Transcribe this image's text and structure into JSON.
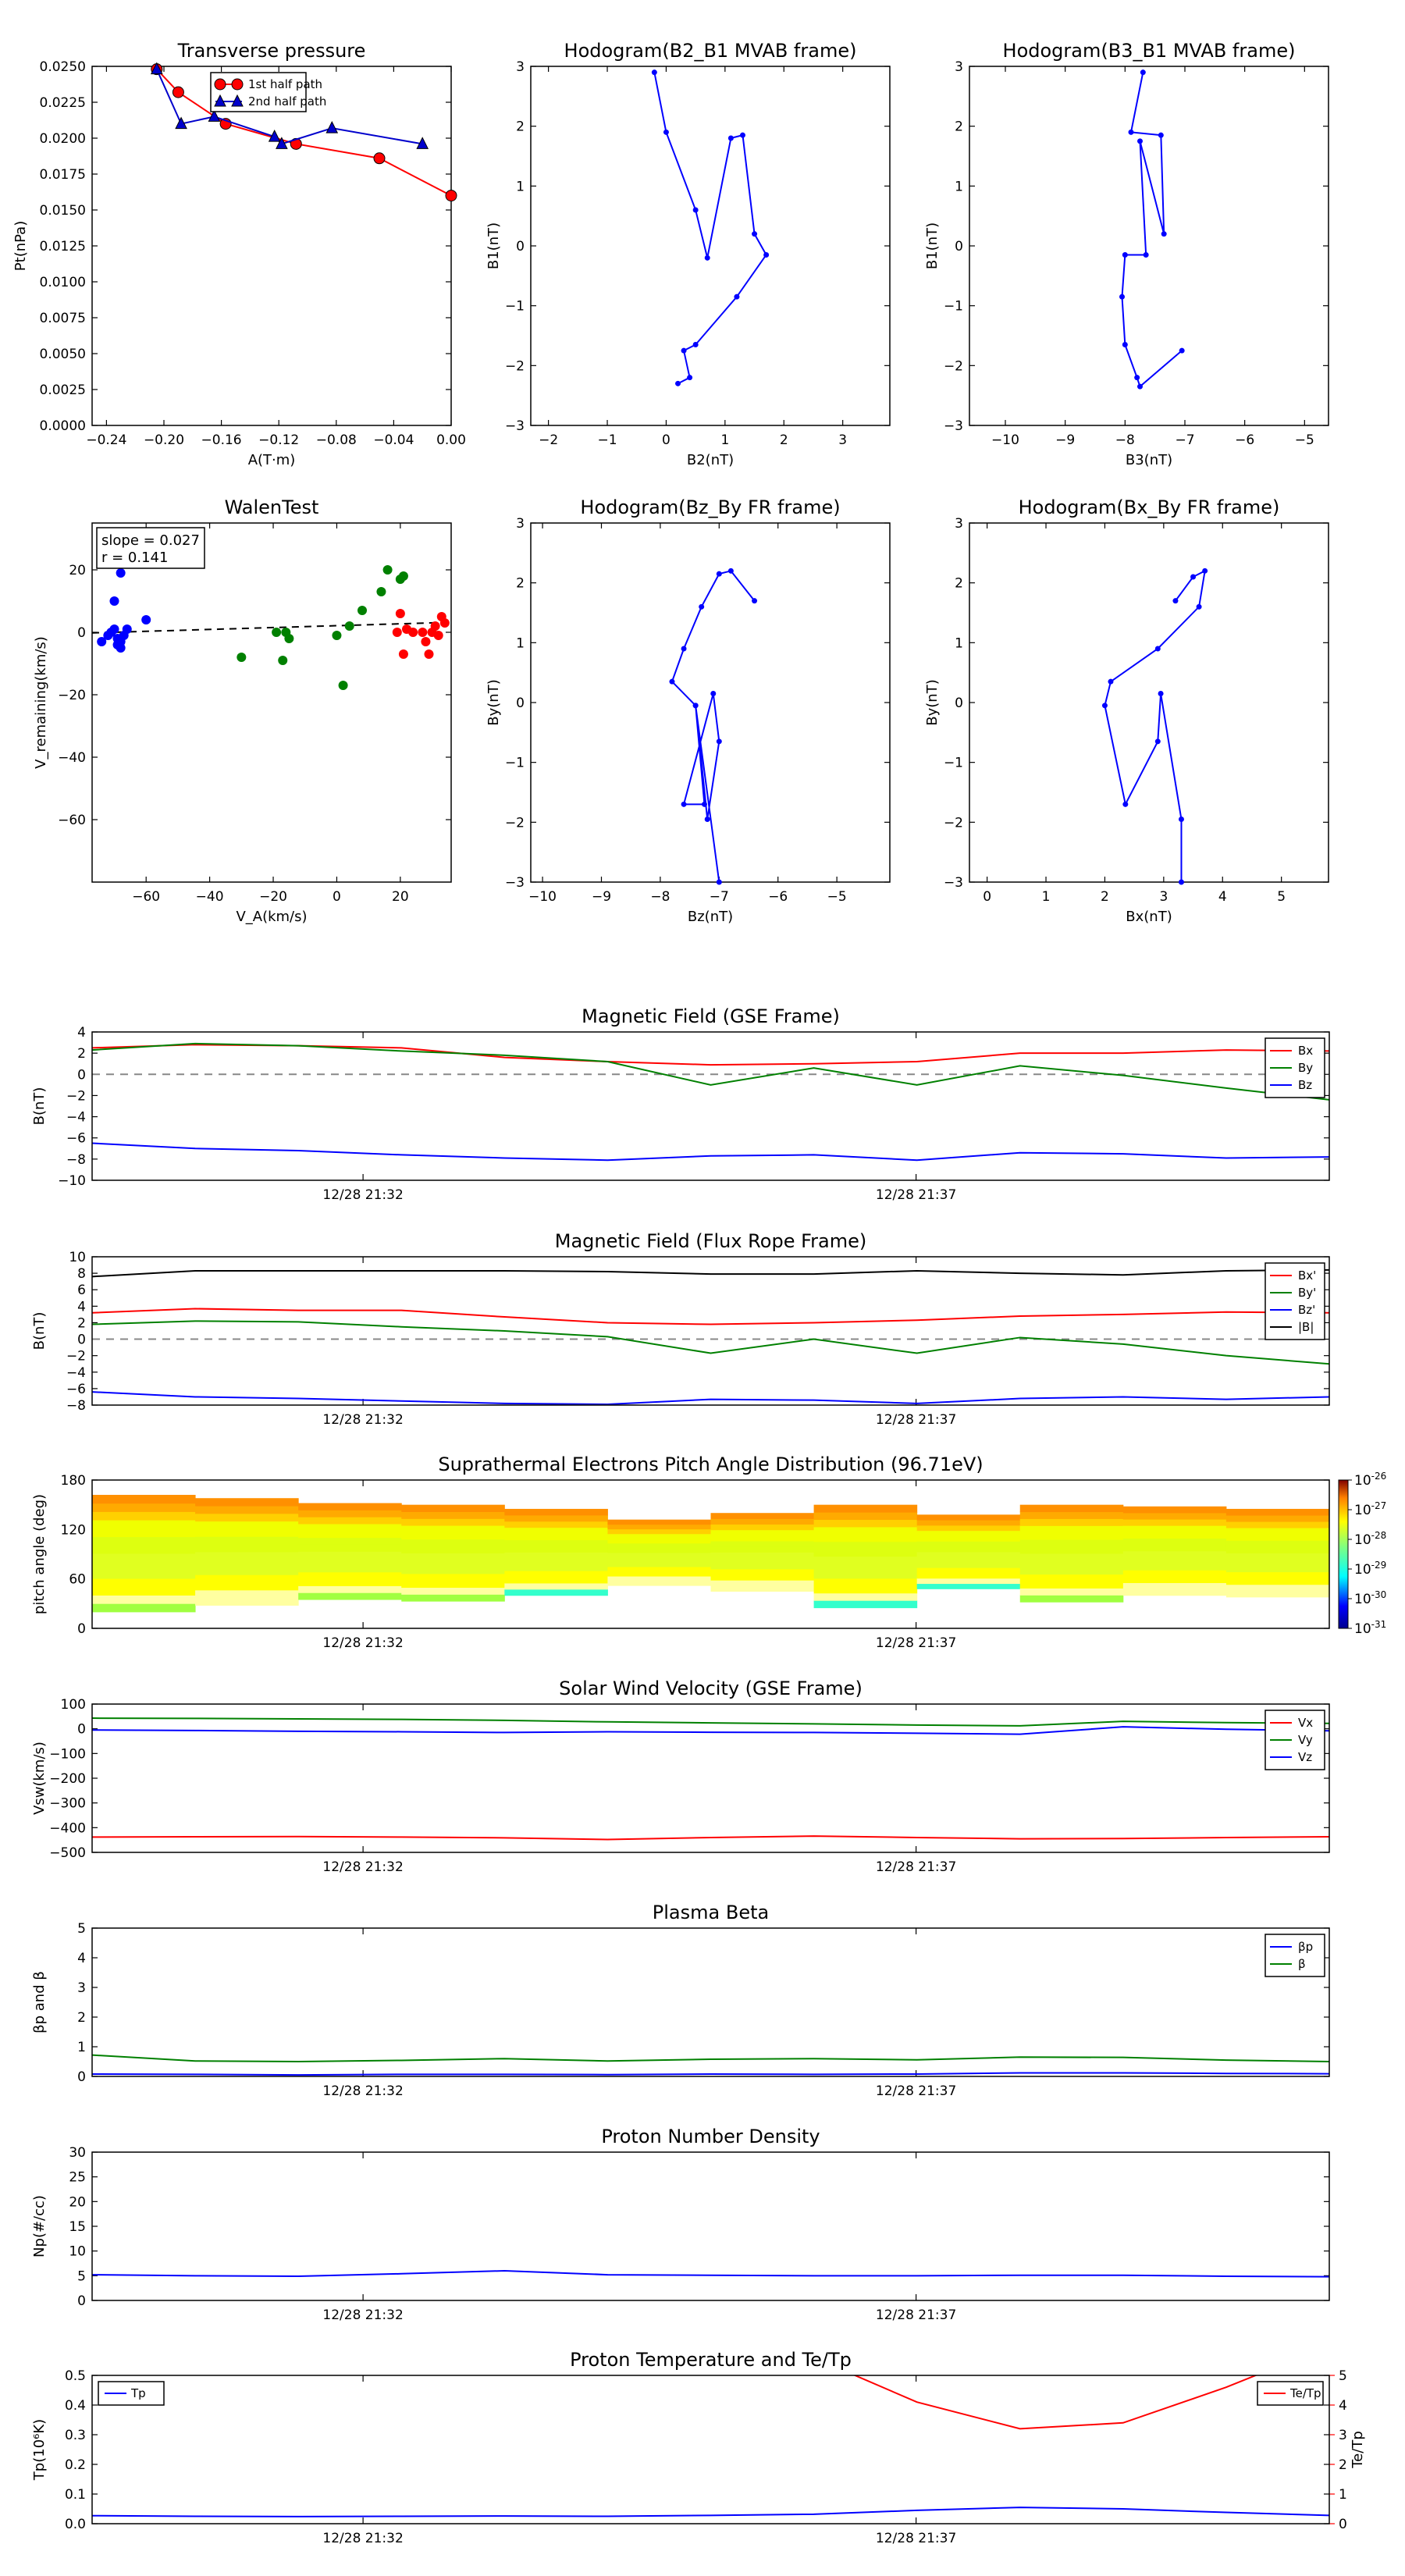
{
  "chart_data": [
    {
      "id": "pt",
      "type": "line",
      "title": "Transverse pressure",
      "xlabel": "A(T·m)",
      "ylabel": "Pt(nPa)",
      "xlim": [
        -0.25,
        0.0
      ],
      "ylim": [
        0.0,
        0.025
      ],
      "xticks": [
        -0.24,
        -0.2,
        -0.16,
        -0.12,
        -0.08,
        -0.04,
        0.0
      ],
      "xtick_labels": [
        "−0.24",
        "−0.20",
        "−0.16",
        "−0.12",
        "−0.08",
        "−0.04",
        "0.00"
      ],
      "yticks": [
        0,
        0.0025,
        0.005,
        0.0075,
        0.01,
        0.0125,
        0.015,
        0.0175,
        0.02,
        0.0225,
        0.025
      ],
      "ytick_labels": [
        "0.0000",
        "0.0025",
        "0.0050",
        "0.0075",
        "0.0100",
        "0.0125",
        "0.0150",
        "0.0175",
        "0.0200",
        "0.0225",
        "0.0250"
      ],
      "legend": "top-center",
      "series": [
        {
          "name": "1st half path",
          "color": "#ff0000",
          "marker": "circle",
          "x": [
            -0.205,
            -0.19,
            -0.157,
            -0.108,
            -0.05,
            0.0
          ],
          "y": [
            0.0248,
            0.0232,
            0.021,
            0.0196,
            0.0186,
            0.016
          ]
        },
        {
          "name": "2nd half path",
          "color": "#0000cc",
          "marker": "triangle",
          "x": [
            -0.205,
            -0.188,
            -0.165,
            -0.123,
            -0.118,
            -0.083,
            -0.02
          ],
          "y": [
            0.0248,
            0.021,
            0.0215,
            0.0201,
            0.0196,
            0.0207,
            0.0196
          ]
        }
      ]
    },
    {
      "id": "h21",
      "type": "line",
      "title": "Hodogram(B2_B1 MVAB frame)",
      "xlabel": "B2(nT)",
      "ylabel": "B1(nT)",
      "xlim": [
        -2.3,
        3.8
      ],
      "ylim": [
        -3,
        3
      ],
      "xticks": [
        -2,
        -1,
        0,
        1,
        2,
        3
      ],
      "xtick_labels": [
        "−2",
        "−1",
        "0",
        "1",
        "2",
        "3"
      ],
      "yticks": [
        -3,
        -2,
        -1,
        0,
        1,
        2,
        3
      ],
      "ytick_labels": [
        "−3",
        "−2",
        "−1",
        "0",
        "1",
        "2",
        "3"
      ],
      "series": [
        {
          "color": "#0000ff",
          "marker": "dot",
          "x": [
            -0.2,
            0.0,
            0.5,
            0.7,
            1.1,
            1.3,
            1.5,
            1.7,
            1.2,
            0.5,
            0.3,
            0.4,
            0.2
          ],
          "y": [
            2.9,
            1.9,
            0.6,
            -0.2,
            1.8,
            1.85,
            0.2,
            -0.15,
            -0.85,
            -1.65,
            -1.75,
            -2.2,
            -2.3
          ]
        }
      ]
    },
    {
      "id": "h31",
      "type": "line",
      "title": "Hodogram(B3_B1 MVAB frame)",
      "xlabel": "B3(nT)",
      "ylabel": "B1(nT)",
      "xlim": [
        -10.6,
        -4.6
      ],
      "ylim": [
        -3,
        3
      ],
      "xticks": [
        -10,
        -9,
        -8,
        -7,
        -6,
        -5
      ],
      "xtick_labels": [
        "−10",
        "−9",
        "−8",
        "−7",
        "−6",
        "−5"
      ],
      "yticks": [
        -3,
        -2,
        -1,
        0,
        1,
        2,
        3
      ],
      "ytick_labels": [
        "−3",
        "−2",
        "−1",
        "0",
        "1",
        "2",
        "3"
      ],
      "series": [
        {
          "color": "#0000ff",
          "marker": "dot",
          "x": [
            -7.7,
            -7.9,
            -7.4,
            -7.35,
            -7.75,
            -7.65,
            -8.0,
            -8.05,
            -8.0,
            -7.8,
            -7.75,
            -7.05
          ],
          "y": [
            2.9,
            1.9,
            1.85,
            0.2,
            1.75,
            -0.15,
            -0.15,
            -0.85,
            -1.65,
            -2.2,
            -2.35,
            -1.75
          ]
        }
      ]
    },
    {
      "id": "walen",
      "type": "scatter",
      "title": "WalenTest",
      "xlabel": "V_A(km/s)",
      "ylabel": "V_remaining(km/s)",
      "annotation": [
        "slope = 0.027",
        "r = 0.141"
      ],
      "xlim": [
        -77,
        36
      ],
      "ylim": [
        -80,
        35
      ],
      "xticks": [
        -60,
        -40,
        -20,
        0,
        20
      ],
      "xtick_labels": [
        "−60",
        "−40",
        "−20",
        "0",
        "20"
      ],
      "yticks": [
        -60,
        -40,
        -20,
        0,
        20
      ],
      "ytick_labels": [
        "−60",
        "−40",
        "−20",
        "0",
        "20"
      ],
      "fit": {
        "x": [
          -77,
          36
        ],
        "y": [
          -0.2,
          3.2
        ]
      },
      "groups": [
        {
          "color": "#0000ff",
          "x": [
            -74,
            -72,
            -71,
            -70,
            -69,
            -69,
            -68,
            -68,
            -67,
            -66,
            -60,
            -70,
            -68
          ],
          "y": [
            -3,
            -1,
            0,
            1,
            -2,
            -4,
            -5,
            -3,
            -1,
            1,
            4,
            10,
            19
          ]
        },
        {
          "color": "#008000",
          "x": [
            -30,
            -19,
            -17,
            -16,
            -15,
            0,
            2,
            4,
            8,
            14,
            16,
            20,
            21
          ],
          "y": [
            -8,
            0,
            -9,
            0,
            -2,
            -1,
            -17,
            2,
            7,
            13,
            20,
            17,
            18
          ]
        },
        {
          "color": "#ff0000",
          "x": [
            19,
            20,
            21,
            22,
            24,
            28,
            29,
            30,
            31,
            32,
            33,
            34,
            27
          ],
          "y": [
            0,
            6,
            -7,
            1,
            0,
            -3,
            -7,
            0,
            2,
            -1,
            5,
            3,
            0
          ]
        }
      ]
    },
    {
      "id": "hzy",
      "type": "line",
      "title": "Hodogram(Bz_By FR frame)",
      "xlabel": "Bz(nT)",
      "ylabel": "By(nT)",
      "xlim": [
        -10.2,
        -4.1
      ],
      "ylim": [
        -3,
        3
      ],
      "xticks": [
        -10,
        -9,
        -8,
        -7,
        -6,
        -5
      ],
      "xtick_labels": [
        "−10",
        "−9",
        "−8",
        "−7",
        "−6",
        "−5"
      ],
      "yticks": [
        -3,
        -2,
        -1,
        0,
        1,
        2,
        3
      ],
      "ytick_labels": [
        "−3",
        "−2",
        "−1",
        "0",
        "1",
        "2",
        "3"
      ],
      "series": [
        {
          "color": "#0000ff",
          "marker": "dot",
          "x": [
            -6.4,
            -6.8,
            -7.0,
            -7.3,
            -7.6,
            -7.8,
            -7.4,
            -7.25,
            -7.6,
            -7.1,
            -7.0,
            -7.2,
            -7.4,
            -7.0
          ],
          "y": [
            1.7,
            2.2,
            2.15,
            1.6,
            0.9,
            0.35,
            -0.05,
            -1.7,
            -1.7,
            0.15,
            -0.65,
            -1.95,
            -0.05,
            -3.0
          ]
        }
      ]
    },
    {
      "id": "hxy",
      "type": "line",
      "title": "Hodogram(Bx_By FR frame)",
      "xlabel": "Bx(nT)",
      "ylabel": "By(nT)",
      "xlim": [
        -0.3,
        5.8
      ],
      "ylim": [
        -3,
        3
      ],
      "xticks": [
        0,
        1,
        2,
        3,
        4,
        5
      ],
      "xtick_labels": [
        "0",
        "1",
        "2",
        "3",
        "4",
        "5"
      ],
      "yticks": [
        -3,
        -2,
        -1,
        0,
        1,
        2,
        3
      ],
      "ytick_labels": [
        "−3",
        "−2",
        "−1",
        "0",
        "1",
        "2",
        "3"
      ],
      "series": [
        {
          "color": "#0000ff",
          "marker": "dot",
          "x": [
            3.2,
            3.5,
            3.7,
            3.6,
            2.9,
            2.1,
            2.0,
            2.35,
            2.9,
            2.95,
            3.3,
            3.3
          ],
          "y": [
            1.7,
            2.1,
            2.2,
            1.6,
            0.9,
            0.35,
            -0.05,
            -1.7,
            -0.65,
            0.15,
            -1.95,
            -3.0
          ]
        }
      ]
    },
    {
      "id": "bgse",
      "type": "line",
      "title": "Magnetic Field (GSE Frame)",
      "ylabel": "B(nT)",
      "ylim": [
        -10,
        4
      ],
      "yticks": [
        -10,
        -8,
        -6,
        -4,
        -2,
        0,
        2,
        4
      ],
      "ytick_labels": [
        "−10",
        "−8",
        "−6",
        "−4",
        "−2",
        "0",
        "2",
        "4"
      ],
      "xticks": [
        "12/28 21:32",
        "12/28 21:37"
      ],
      "zero_line": true,
      "legend": "top-right",
      "series": [
        {
          "name": "Bx",
          "color": "#ff0000",
          "values": [
            2.5,
            2.8,
            2.7,
            2.5,
            1.6,
            1.2,
            0.9,
            1.0,
            1.2,
            2.0,
            2.0,
            2.3,
            2.2
          ]
        },
        {
          "name": "By",
          "color": "#008000",
          "values": [
            2.3,
            2.9,
            2.7,
            2.2,
            1.8,
            1.2,
            -1.0,
            0.6,
            -1.0,
            0.8,
            -0.1,
            -1.3,
            -2.4
          ]
        },
        {
          "name": "Bz",
          "color": "#0000ff",
          "values": [
            -6.5,
            -7.0,
            -7.2,
            -7.6,
            -7.9,
            -8.1,
            -7.7,
            -7.6,
            -8.1,
            -7.4,
            -7.5,
            -7.9,
            -7.8
          ]
        }
      ]
    },
    {
      "id": "bfr",
      "type": "line",
      "title": "Magnetic Field (Flux Rope Frame)",
      "ylabel": "B(nT)",
      "ylim": [
        -8,
        10
      ],
      "yticks": [
        -8,
        -6,
        -4,
        -2,
        0,
        2,
        4,
        6,
        8,
        10
      ],
      "ytick_labels": [
        "−8",
        "−6",
        "−4",
        "−2",
        "0",
        "2",
        "4",
        "6",
        "8",
        "10"
      ],
      "xticks": [
        "12/28 21:32",
        "12/28 21:37"
      ],
      "zero_line": true,
      "legend": "top-right",
      "series": [
        {
          "name": "Bx'",
          "color": "#ff0000",
          "values": [
            3.2,
            3.7,
            3.5,
            3.5,
            2.7,
            2.0,
            1.8,
            2.0,
            2.3,
            2.8,
            3.0,
            3.3,
            3.2
          ]
        },
        {
          "name": "By'",
          "color": "#008000",
          "values": [
            1.8,
            2.2,
            2.1,
            1.5,
            1.0,
            0.3,
            -1.7,
            0.0,
            -1.7,
            0.2,
            -0.6,
            -2.0,
            -3.0
          ]
        },
        {
          "name": "Bz'",
          "color": "#0000ff",
          "values": [
            -6.4,
            -7.0,
            -7.2,
            -7.5,
            -7.8,
            -7.9,
            -7.3,
            -7.4,
            -7.8,
            -7.2,
            -7.0,
            -7.3,
            -7.0
          ]
        },
        {
          "name": "|B|",
          "color": "#000000",
          "values": [
            7.6,
            8.3,
            8.3,
            8.3,
            8.3,
            8.2,
            7.9,
            7.9,
            8.3,
            8.0,
            7.8,
            8.3,
            8.4
          ]
        }
      ]
    },
    {
      "id": "pad",
      "type": "heatmap",
      "title": "Suprathermal Electrons Pitch Angle Distribution (96.71eV)",
      "ylabel": "pitch angle (deg)",
      "ylim": [
        0,
        180
      ],
      "yticks": [
        0,
        60,
        120,
        180
      ],
      "ytick_labels": [
        "0",
        "60",
        "120",
        "180"
      ],
      "xticks": [
        "12/28 21:32",
        "12/28 21:37"
      ],
      "colorbar": {
        "min_exp": -31,
        "max_exp": -26,
        "labels": [
          "10-26",
          "10-27",
          "10-28",
          "10-29",
          "10-30",
          "10-31"
        ]
      },
      "columns": [
        {
          "lo": 20,
          "hi": 162
        },
        {
          "lo": 28,
          "hi": 158
        },
        {
          "lo": 35,
          "hi": 152
        },
        {
          "lo": 33,
          "hi": 150
        },
        {
          "lo": 40,
          "hi": 145
        },
        {
          "lo": 52,
          "hi": 132
        },
        {
          "lo": 45,
          "hi": 140
        },
        {
          "lo": 25,
          "hi": 150
        },
        {
          "lo": 48,
          "hi": 138
        },
        {
          "lo": 32,
          "hi": 150
        },
        {
          "lo": 40,
          "hi": 148
        },
        {
          "lo": 38,
          "hi": 145
        }
      ]
    },
    {
      "id": "vsw",
      "type": "line",
      "title": "Solar Wind Velocity (GSE Frame)",
      "ylabel": "Vsw(km/s)",
      "ylim": [
        -500,
        100
      ],
      "yticks": [
        -500,
        -400,
        -300,
        -200,
        -100,
        0,
        100
      ],
      "ytick_labels": [
        "−500",
        "−400",
        "−300",
        "−200",
        "−100",
        "0",
        "100"
      ],
      "xticks": [
        "12/28 21:32",
        "12/28 21:37"
      ],
      "legend": "top-right",
      "series": [
        {
          "name": "Vx",
          "color": "#ff0000",
          "values": [
            -438,
            -437,
            -436,
            -438,
            -441,
            -448,
            -440,
            -434,
            -440,
            -445,
            -444,
            -440,
            -437
          ]
        },
        {
          "name": "Vy",
          "color": "#008000",
          "values": [
            43,
            42,
            40,
            38,
            34,
            28,
            24,
            20,
            15,
            12,
            30,
            25,
            22
          ]
        },
        {
          "name": "Vz",
          "color": "#0000ff",
          "values": [
            -5,
            -7,
            -10,
            -12,
            -15,
            -12,
            -14,
            -15,
            -18,
            -22,
            8,
            -2,
            -8
          ]
        }
      ]
    },
    {
      "id": "beta",
      "type": "line",
      "title": "Plasma Beta",
      "ylabel": "βp and β",
      "ylim": [
        0,
        5
      ],
      "yticks": [
        0,
        1,
        2,
        3,
        4,
        5
      ],
      "ytick_labels": [
        "0",
        "1",
        "2",
        "3",
        "4",
        "5"
      ],
      "xticks": [
        "12/28 21:32",
        "12/28 21:37"
      ],
      "legend": "top-right",
      "series": [
        {
          "name": "βp",
          "color": "#0000ff",
          "values": [
            0.08,
            0.07,
            0.05,
            0.07,
            0.07,
            0.06,
            0.08,
            0.07,
            0.08,
            0.12,
            0.12,
            0.1,
            0.09
          ]
        },
        {
          "name": "β",
          "color": "#008000",
          "values": [
            0.72,
            0.52,
            0.5,
            0.54,
            0.6,
            0.52,
            0.58,
            0.6,
            0.56,
            0.65,
            0.64,
            0.55,
            0.5
          ]
        }
      ]
    },
    {
      "id": "np",
      "type": "line",
      "title": "Proton Number Density",
      "ylabel": "Np(#/cc)",
      "ylim": [
        0,
        30
      ],
      "yticks": [
        0,
        5,
        10,
        15,
        20,
        25,
        30
      ],
      "ytick_labels": [
        "0",
        "5",
        "10",
        "15",
        "20",
        "25",
        "30"
      ],
      "xticks": [
        "12/28 21:32",
        "12/28 21:37"
      ],
      "series": [
        {
          "color": "#0000ff",
          "values": [
            5.2,
            5.0,
            4.9,
            5.4,
            6.0,
            5.2,
            5.1,
            5.0,
            5.0,
            5.1,
            5.1,
            4.9,
            4.8
          ]
        }
      ]
    },
    {
      "id": "tp",
      "type": "line",
      "title": "Proton Temperature and Te/Tp",
      "ylabel": "Tp(10⁶K)",
      "ylabel_right": "Te/Tp",
      "ylim": [
        0,
        0.5
      ],
      "ylim_right": [
        0,
        5
      ],
      "yticks": [
        0,
        0.1,
        0.2,
        0.3,
        0.4,
        0.5
      ],
      "ytick_labels": [
        "0.0",
        "0.1",
        "0.2",
        "0.3",
        "0.4",
        "0.5"
      ],
      "yticks_right": [
        0,
        1,
        2,
        3,
        4,
        5
      ],
      "ytick_labels_right": [
        "0",
        "1",
        "2",
        "3",
        "4",
        "5"
      ],
      "xticks": [
        "12/28 21:32",
        "12/28 21:37"
      ],
      "series": [
        {
          "name": "Tp",
          "color": "#0000ff",
          "axis": "left",
          "values": [
            0.027,
            0.025,
            0.024,
            0.025,
            0.026,
            0.025,
            0.028,
            0.032,
            0.045,
            0.055,
            0.05,
            0.038,
            0.028
          ]
        },
        {
          "name": "Te/Tp",
          "color": "#ff0000",
          "axis": "right",
          "values": [
            null,
            null,
            null,
            null,
            null,
            null,
            null,
            5.6,
            4.1,
            3.2,
            3.4,
            4.6,
            6.0
          ]
        }
      ]
    }
  ]
}
